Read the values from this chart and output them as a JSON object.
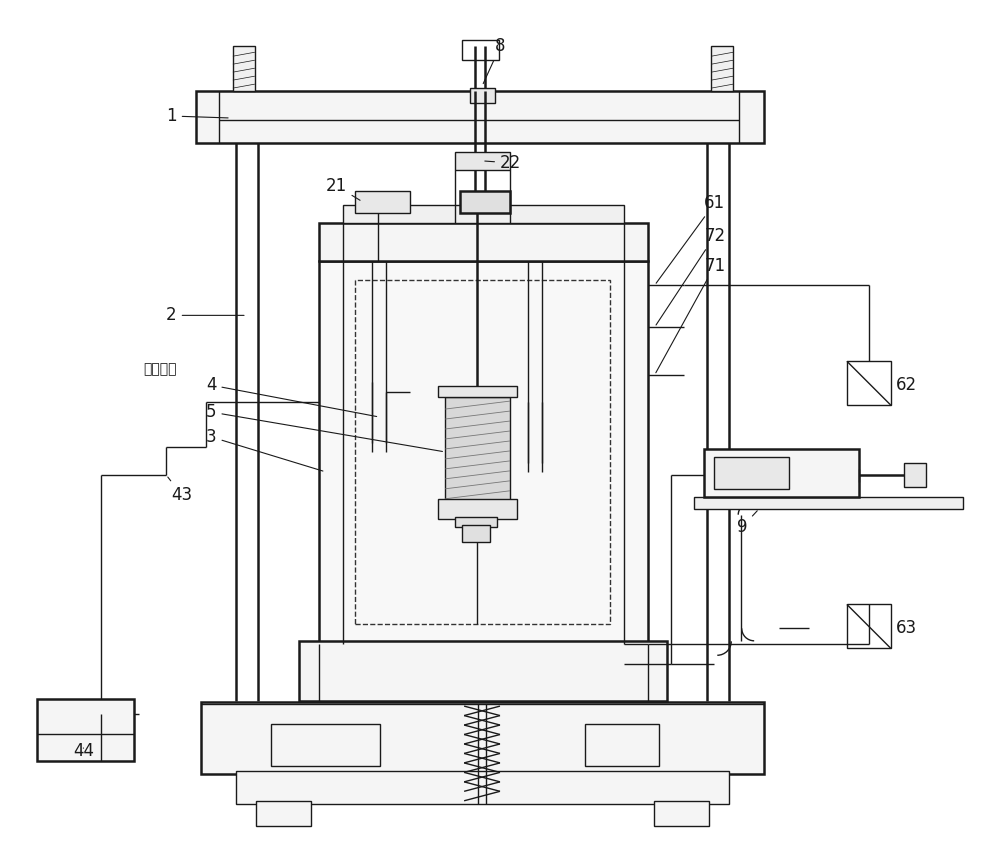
{
  "bg_color": "#ffffff",
  "lc": "#1a1a1a",
  "fig_w": 10.0,
  "fig_h": 8.57,
  "lw": 1.0,
  "lw2": 1.8
}
